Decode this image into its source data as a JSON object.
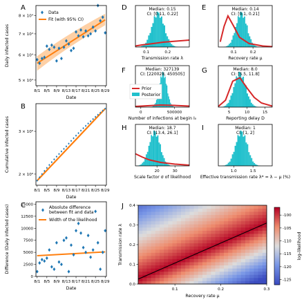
{
  "colors": {
    "data": "#1f77b4",
    "fit": "#ff7f0e",
    "band": "#fdc087",
    "hist": "#20c0cc",
    "prior": "#d62728"
  },
  "chart_data": [
    {
      "id": "A",
      "type": "scatter",
      "panel_label": "A",
      "xlabel": "Date",
      "ylabel": "Daily infected cases",
      "xticks": [
        "8/1",
        "8/5",
        "8/9",
        "8/13",
        "8/17",
        "8/21",
        "8/25",
        "8/29"
      ],
      "yticks": [
        "5 × 10⁴",
        "6 × 10⁴",
        "7 × 10⁴",
        "8 × 10⁴"
      ],
      "ylim": [
        48000,
        86000
      ],
      "log_y": true,
      "legend": {
        "data": "Data",
        "fit": "Fit (with 95% CI)",
        "placement": "top-left"
      },
      "series": [
        {
          "name": "Data",
          "kind": "points",
          "x": [
            1,
            2,
            3,
            4,
            5,
            6,
            7,
            8,
            9,
            10,
            11,
            12,
            13,
            14,
            15,
            16,
            17,
            18,
            19,
            20,
            21,
            22,
            23,
            24,
            25,
            26,
            27,
            28,
            29
          ],
          "y": [
            58000,
            56500,
            58500,
            59000,
            64000,
            62500,
            64500,
            63500,
            57500,
            63000,
            58500,
            63500,
            66500,
            65000,
            62000,
            63000,
            71000,
            69000,
            72000,
            68500,
            71500,
            69000,
            70000,
            73500,
            71500,
            86000,
            77000,
            79000,
            70500
          ]
        },
        {
          "name": "Fit (with 95% CI)",
          "kind": "line",
          "x": [
            1,
            29
          ],
          "y": [
            56500,
            77500
          ],
          "ci_low": [
            53500,
            74500
          ],
          "ci_high": [
            59500,
            81000
          ]
        }
      ]
    },
    {
      "id": "B",
      "type": "line",
      "panel_label": "B",
      "xlabel": "Date",
      "ylabel": "Cumulative infected cases",
      "xticks": [
        "8/1",
        "8/5",
        "8/9",
        "8/13",
        "8/17",
        "8/21",
        "8/25",
        "8/29"
      ],
      "yticks": [
        "2 × 10⁶",
        "3 × 10⁶"
      ],
      "log_y": true,
      "series": [
        {
          "name": "Data",
          "kind": "points",
          "x": [
            1,
            2,
            3,
            4,
            5,
            6,
            7,
            8,
            9,
            10,
            11,
            12,
            13,
            14,
            15,
            16,
            17,
            18,
            19,
            20,
            21,
            22,
            23,
            24,
            25,
            26,
            27,
            28,
            29
          ],
          "y": [
            1880000,
            1940000,
            2000000,
            2060000,
            2120000,
            2180000,
            2240000,
            2300000,
            2360000,
            2420000,
            2480000,
            2540000,
            2600000,
            2670000,
            2740000,
            2810000,
            2880000,
            2950000,
            3020000,
            3090000,
            3160000,
            3230000,
            3300000,
            3370000,
            3440000,
            3510000,
            3580000,
            3650000,
            3720000
          ]
        },
        {
          "name": "Fit",
          "kind": "line",
          "x": [
            1,
            29
          ],
          "y": [
            1880000,
            3720000
          ]
        }
      ]
    },
    {
      "id": "C",
      "type": "scatter",
      "panel_label": "C",
      "xlabel": "Date",
      "ylabel": "Difference (Daily infected cases)",
      "xticks": [
        "8/1",
        "8/5",
        "8/9",
        "8/13",
        "8/17",
        "8/21",
        "8/25",
        "8/29"
      ],
      "yticks": [
        "0",
        "2500",
        "5000",
        "7500",
        "10000",
        "12500",
        "15000"
      ],
      "ylim": [
        0,
        15500
      ],
      "legend": {
        "data": "Absolute difference between fit and data",
        "fit": "Width of the likelihood",
        "placement": "top-right"
      },
      "series": [
        {
          "name": "Absolute difference between fit and data",
          "kind": "points",
          "x": [
            1,
            2,
            3,
            4,
            5,
            6,
            7,
            8,
            9,
            10,
            11,
            12,
            13,
            14,
            15,
            16,
            17,
            18,
            19,
            20,
            21,
            22,
            23,
            24,
            25,
            26,
            27,
            28,
            29
          ],
          "y": [
            1000,
            2800,
            3500,
            3200,
            3800,
            5500,
            2000,
            1500,
            7000,
            3000,
            2500,
            7500,
            8000,
            1000,
            6500,
            4500,
            9500,
            11000,
            9000,
            6000,
            5000,
            8500,
            4000,
            5500,
            13500,
            7000,
            1500,
            5000,
            9500
          ]
        },
        {
          "name": "Width of the likelihood",
          "kind": "line",
          "x": [
            1,
            29
          ],
          "y": [
            4300,
            5100
          ]
        }
      ]
    },
    {
      "id": "D",
      "type": "histogram",
      "panel_label": "D",
      "xlabel": "Transmission rate λ",
      "median_text": "Median: 0.15",
      "ci_text": "CI: [0.11, 0.22]",
      "xticks": [
        {
          "v": 0.1,
          "t": "0.1"
        },
        {
          "v": 0.2,
          "t": "0.2"
        }
      ],
      "xlim": [
        0.05,
        0.3
      ],
      "hist_mean": 0.155,
      "hist_sd": 0.028,
      "prior": [
        [
          0.05,
          0.03
        ],
        [
          0.08,
          0.06
        ],
        [
          0.12,
          0.09
        ],
        [
          0.18,
          0.14
        ],
        [
          0.24,
          0.17
        ],
        [
          0.3,
          0.2
        ]
      ]
    },
    {
      "id": "E",
      "type": "histogram",
      "panel_label": "E",
      "xlabel": "Recovery rate μ",
      "median_text": "Median: 0.14",
      "ci_text": "CI: [0.1, 0.21]",
      "xticks": [
        {
          "v": 0.1,
          "t": "0.1"
        },
        {
          "v": 0.2,
          "t": "0.2"
        }
      ],
      "xlim": [
        0.02,
        0.3
      ],
      "hist_mean": 0.14,
      "hist_sd": 0.028,
      "prior": [
        [
          0.03,
          0.15
        ],
        [
          0.05,
          0.6
        ],
        [
          0.07,
          0.9
        ],
        [
          0.1,
          0.6
        ],
        [
          0.13,
          0.28
        ],
        [
          0.18,
          0.1
        ],
        [
          0.25,
          0.03
        ],
        [
          0.3,
          0.01
        ]
      ]
    },
    {
      "id": "F",
      "type": "histogram",
      "panel_label": "F",
      "xlabel": "Number of infections at begin I₀",
      "median_text": "Median: 327139",
      "ci_text": "CI: [220028, 450505]",
      "xticks": [
        {
          "v": 0,
          "t": "0"
        },
        {
          "v": 500000,
          "t": "500000"
        }
      ],
      "xlim": [
        -80000,
        720000
      ],
      "hist_mean": 330000,
      "hist_sd": 55000,
      "prior": [
        [
          -80000,
          0.02
        ],
        [
          100000,
          0.04
        ],
        [
          300000,
          0.06
        ],
        [
          500000,
          0.05
        ],
        [
          720000,
          0.03
        ]
      ],
      "legend": {
        "prior": "Prior",
        "posterior": "Posterior"
      }
    },
    {
      "id": "G",
      "type": "histogram",
      "panel_label": "G",
      "xlabel": "Reporting delay D",
      "median_text": "Median: 8.0",
      "ci_text": "CI: [5.5, 11.8]",
      "xticks": [
        {
          "v": 5,
          "t": "5"
        },
        {
          "v": 10,
          "t": "10"
        },
        {
          "v": 15,
          "t": "15"
        }
      ],
      "xlim": [
        2,
        17
      ],
      "hist_mean": 8.0,
      "hist_sd": 1.6,
      "prior": [
        [
          2,
          0.02
        ],
        [
          4,
          0.2
        ],
        [
          6,
          0.75
        ],
        [
          8,
          0.85
        ],
        [
          10,
          0.55
        ],
        [
          12,
          0.28
        ],
        [
          14,
          0.12
        ],
        [
          17,
          0.03
        ]
      ]
    },
    {
      "id": "H",
      "type": "histogram",
      "panel_label": "H",
      "xlabel": "Scale factor σ of likelihood",
      "median_text": "Median: 18.7",
      "ci_text": "CI: [13.4, 26.1]",
      "xticks": [
        {
          "v": 20,
          "t": "20"
        },
        {
          "v": 30,
          "t": "30"
        }
      ],
      "xlim": [
        8,
        38
      ],
      "hist_mean": 18.7,
      "hist_sd": 3.0,
      "prior": [
        [
          8,
          0.35
        ],
        [
          12,
          0.25
        ],
        [
          16,
          0.17
        ],
        [
          22,
          0.1
        ],
        [
          30,
          0.05
        ],
        [
          38,
          0.02
        ]
      ]
    },
    {
      "id": "I",
      "type": "histogram",
      "panel_label": "I",
      "xlabel": "Effective transmission rate λ* = λ − μ (%)",
      "median_text": "Median: 1",
      "ci_text": "CI: [1, 2]",
      "xticks": [
        {
          "v": 1.0,
          "t": "1.0"
        },
        {
          "v": 1.5,
          "t": "1.5"
        }
      ],
      "xlim": [
        0.6,
        2.0
      ],
      "hist_mean": 1.2,
      "hist_sd": 0.15,
      "prior": []
    },
    {
      "id": "J",
      "type": "heatmap",
      "panel_label": "J",
      "xlabel": "Recovery rate μ",
      "ylabel": "Transmission rate λ",
      "colorbar_label": "log-likelihood",
      "xlim": [
        0.02,
        0.3
      ],
      "ylim": [
        0.0,
        0.4
      ],
      "xticks": [
        {
          "v": 0.1,
          "t": "0.1"
        },
        {
          "v": 0.2,
          "t": "0.2"
        },
        {
          "v": 0.3,
          "t": "0.3"
        }
      ],
      "yticks": [
        {
          "v": 0.0,
          "t": "0.0"
        },
        {
          "v": 0.1,
          "t": "0.1"
        },
        {
          "v": 0.2,
          "t": "0.2"
        },
        {
          "v": 0.3,
          "t": "0.3"
        },
        {
          "v": 0.4,
          "t": "0.4"
        }
      ],
      "colorbar_ticks": [
        "-100",
        "-105",
        "-110",
        "-115",
        "-120",
        "-125"
      ],
      "value_range": [
        -127,
        -97
      ],
      "ridge_line": {
        "x": [
          0.02,
          0.3
        ],
        "y": [
          0.025,
          0.31
        ]
      }
    }
  ]
}
